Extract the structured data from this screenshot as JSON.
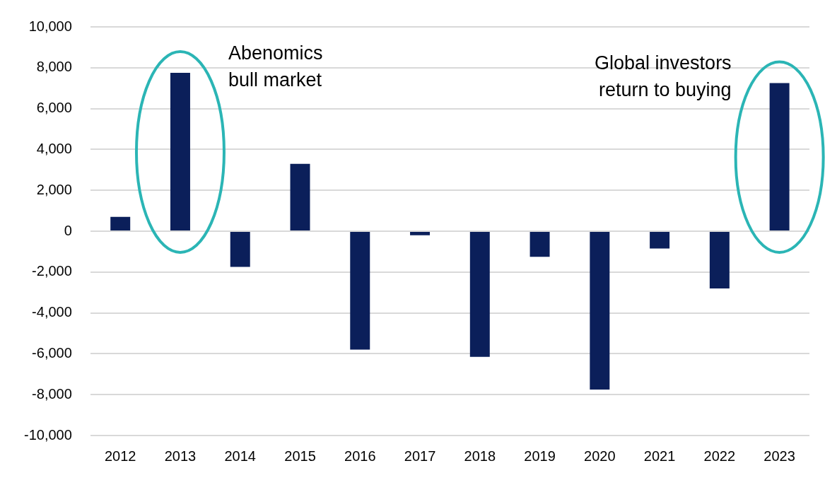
{
  "chart_data": {
    "type": "bar",
    "categories": [
      "2012",
      "2013",
      "2014",
      "2015",
      "2016",
      "2017",
      "2018",
      "2019",
      "2020",
      "2021",
      "2022",
      "2023"
    ],
    "values": [
      700,
      7750,
      -1750,
      3300,
      -5800,
      -200,
      -6150,
      -1250,
      -7750,
      -850,
      -2800,
      7250
    ],
    "color": "#0b1f5a",
    "ylim": [
      -10000,
      10000
    ],
    "yticks": [
      {
        "value": -10000,
        "label": "-10,000"
      },
      {
        "value": -8000,
        "label": "-8,000"
      },
      {
        "value": -6000,
        "label": "-6,000"
      },
      {
        "value": -4000,
        "label": "-4,000"
      },
      {
        "value": -2000,
        "label": "-2,000"
      },
      0,
      {
        "value": 2000,
        "label": "2,000"
      },
      {
        "value": 4000,
        "label": "4,000"
      },
      {
        "value": 6000,
        "label": "6,000"
      },
      {
        "value": 8000,
        "label": "8,000"
      },
      {
        "value": 10000,
        "label": "10,000"
      }
    ],
    "grid": true,
    "annotations": [
      {
        "text": [
          "Abenomics",
          "bull market"
        ],
        "category": "2013",
        "color": "#2bb5b5"
      },
      {
        "text": [
          "Global investors",
          "return to buying"
        ],
        "category": "2023",
        "color": "#2bb5b5"
      }
    ]
  }
}
